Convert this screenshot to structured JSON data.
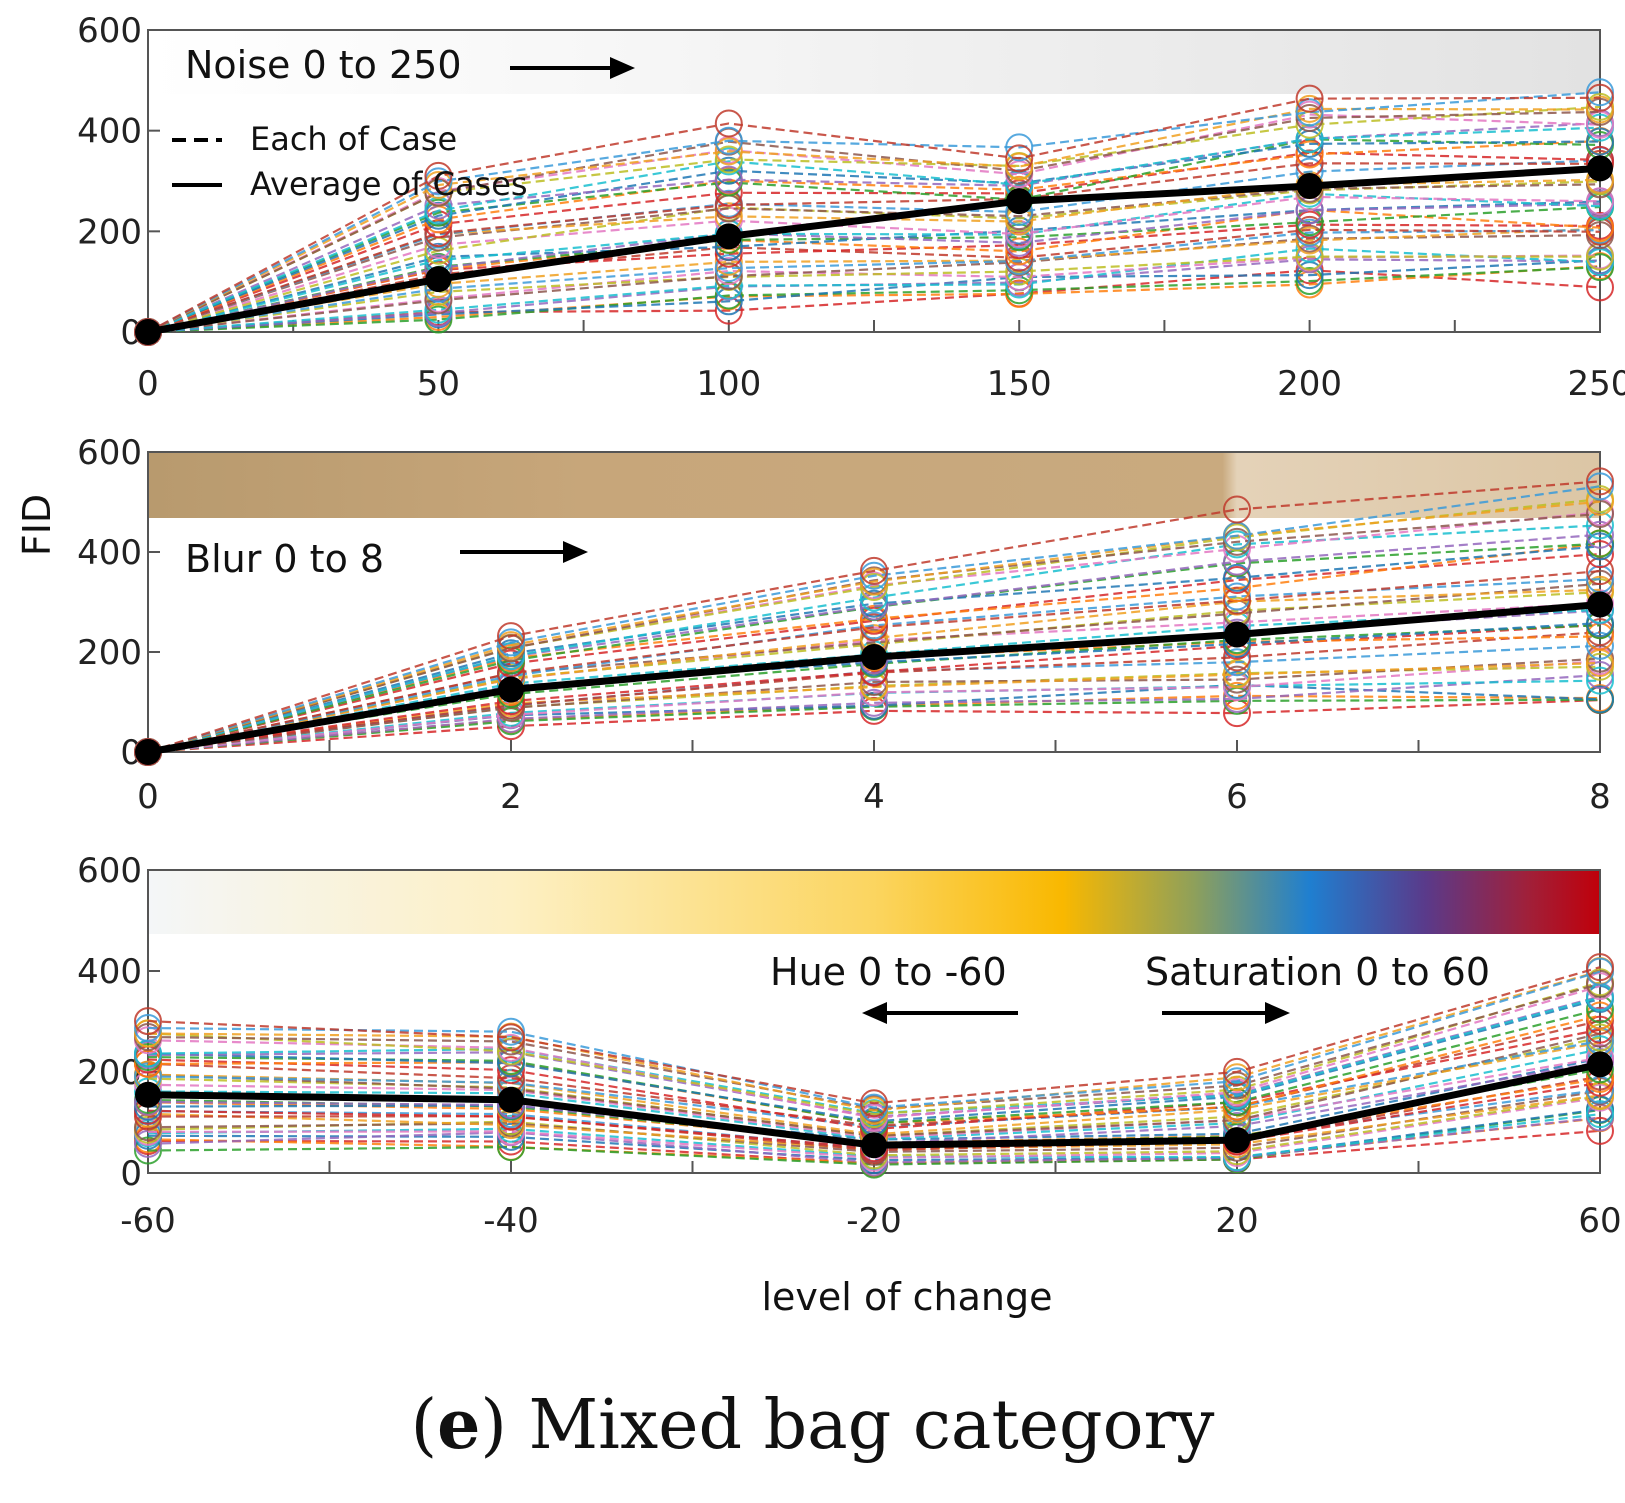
{
  "caption": {
    "label": "e",
    "text": "Mixed bag category"
  },
  "ylabel": "FID",
  "xlabel": "level of change",
  "legend": {
    "dashed": "Each of Case",
    "solid": "Average of Cases"
  },
  "colors": {
    "average": "#000000",
    "cases": [
      "#d62728",
      "#ff7f0e",
      "#2ca02c",
      "#1f77b4",
      "#9467bd",
      "#17becf",
      "#e377c2",
      "#bcbd22",
      "#8c564b",
      "#f0a020",
      "#3a9ad9",
      "#c0392b"
    ]
  },
  "chart_data": [
    {
      "type": "line",
      "title": "Noise 0 to 250",
      "x": [
        0,
        50,
        100,
        150,
        200,
        250
      ],
      "xticks": [
        "0",
        "50",
        "100",
        "150",
        "200",
        "250"
      ],
      "ylim": [
        0,
        600
      ],
      "yticks": [
        "0",
        "200",
        "400",
        "600"
      ],
      "series": [
        {
          "name": "Average of Cases",
          "values": [
            0,
            105,
            190,
            260,
            290,
            325
          ]
        },
        {
          "name": "Each of Case (highest)",
          "values": [
            0,
            310,
            400,
            360,
            470,
            480
          ]
        },
        {
          "name": "Each of Case (lowest)",
          "values": [
            0,
            25,
            60,
            80,
            105,
            105
          ]
        }
      ]
    },
    {
      "type": "line",
      "title": "Blur 0 to 8",
      "x": [
        0,
        2,
        4,
        6,
        8
      ],
      "xticks": [
        "0",
        "2",
        "4",
        "6",
        "8"
      ],
      "ylim": [
        0,
        600
      ],
      "yticks": [
        "0",
        "200",
        "400",
        "600"
      ],
      "series": [
        {
          "name": "Average of Cases",
          "values": [
            0,
            125,
            190,
            235,
            295
          ]
        },
        {
          "name": "Each of Case (highest)",
          "values": [
            0,
            235,
            365,
            465,
            540
          ]
        },
        {
          "name": "Each of Case (lowest)",
          "values": [
            0,
            55,
            85,
            95,
            105
          ]
        }
      ]
    },
    {
      "type": "line",
      "title": "Hue 0 to -60 / Saturation 0 to 60",
      "annotations": [
        "Hue 0 to -60",
        "Saturation 0 to 60"
      ],
      "x": [
        -60,
        -40,
        -20,
        20,
        60
      ],
      "xticks": [
        "-60",
        "-40",
        "-20",
        "20",
        "60"
      ],
      "ylim": [
        0,
        600
      ],
      "yticks": [
        "0",
        "200",
        "400",
        "600"
      ],
      "series": [
        {
          "name": "Average of Cases",
          "values": [
            155,
            145,
            55,
            65,
            215
          ]
        },
        {
          "name": "Each of Case (highest)",
          "values": [
            300,
            280,
            135,
            195,
            405
          ]
        },
        {
          "name": "Each of Case (lowest)",
          "values": [
            50,
            55,
            15,
            20,
            100
          ]
        }
      ]
    }
  ]
}
